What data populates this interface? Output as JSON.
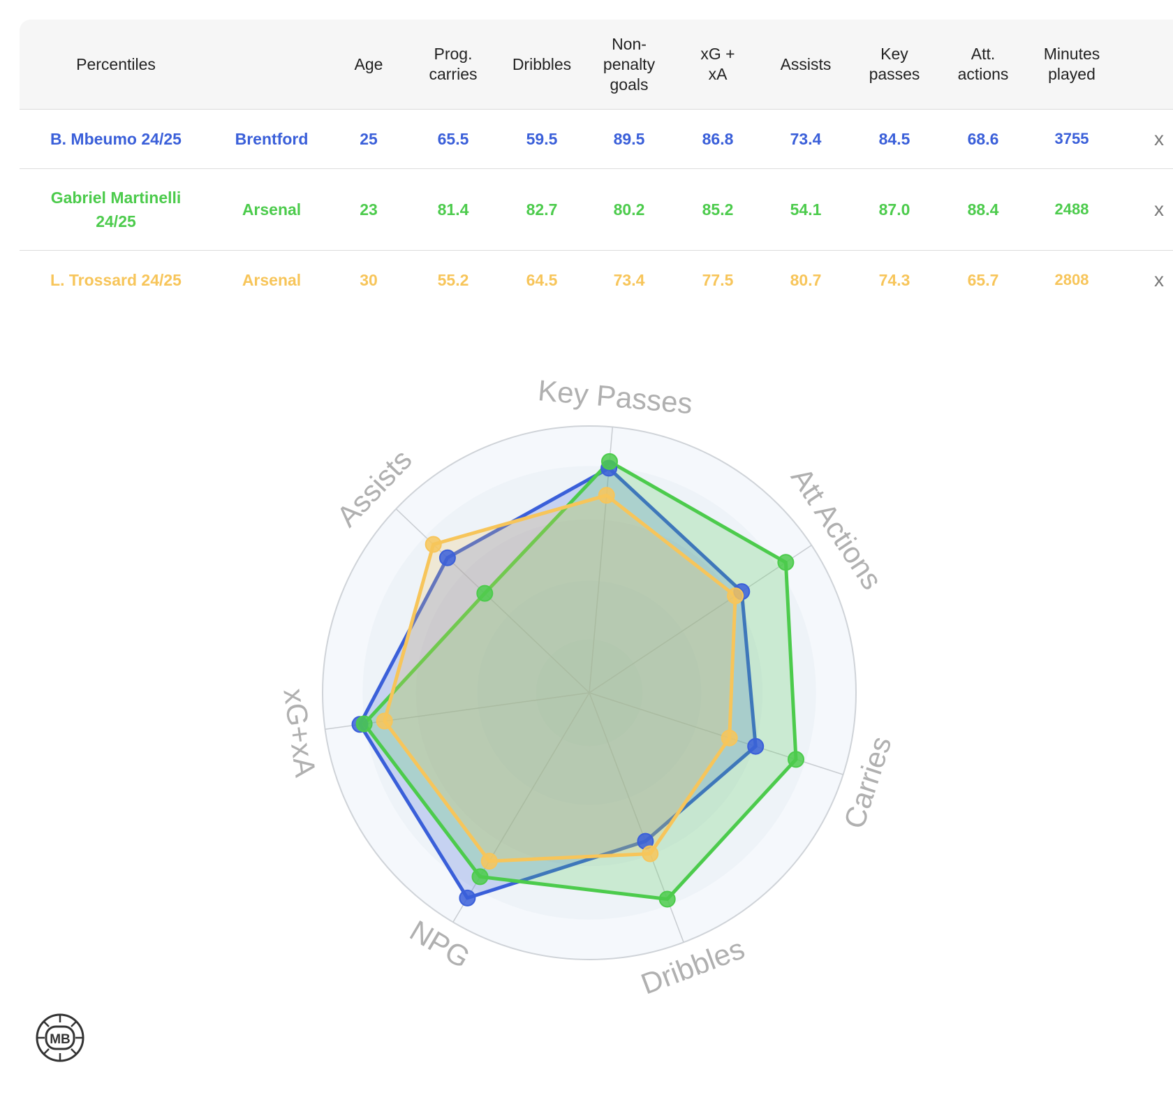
{
  "table": {
    "headers": {
      "percentiles": "Percentiles",
      "team": "",
      "age": "Age",
      "prog_carries": [
        "Prog.",
        "carries"
      ],
      "dribbles": "Dribbles",
      "npg": [
        "Non-",
        "penalty",
        "goals"
      ],
      "xgxa": [
        "xG +",
        "xA"
      ],
      "assists": "Assists",
      "key_passes": [
        "Key",
        "passes"
      ],
      "att_actions": [
        "Att.",
        "actions"
      ],
      "minutes": [
        "Minutes",
        "played"
      ]
    },
    "rows": [
      {
        "name_lines": [
          "B. Mbeumo 24/25"
        ],
        "team": "Brentford",
        "age": "25",
        "prog_carries": "65.5",
        "dribbles": "59.5",
        "npg": "89.5",
        "xgxa": "86.8",
        "assists": "73.4",
        "key_passes": "84.5",
        "att_actions": "68.6",
        "minutes": "3755",
        "remove": "x",
        "color": "#3a5fd9"
      },
      {
        "name_lines": [
          "Gabriel Martinelli",
          "24/25"
        ],
        "team": "Arsenal",
        "age": "23",
        "prog_carries": "81.4",
        "dribbles": "82.7",
        "npg": "80.2",
        "xgxa": "85.2",
        "assists": "54.1",
        "key_passes": "87.0",
        "att_actions": "88.4",
        "minutes": "2488",
        "remove": "x",
        "color": "#4ccb4c"
      },
      {
        "name_lines": [
          "L. Trossard 24/25"
        ],
        "team": "Arsenal",
        "age": "30",
        "prog_carries": "55.2",
        "dribbles": "64.5",
        "npg": "73.4",
        "xgxa": "77.5",
        "assists": "80.7",
        "key_passes": "74.3",
        "att_actions": "65.7",
        "minutes": "2808",
        "remove": "x",
        "color": "#f7c55a"
      }
    ]
  },
  "chart_data": {
    "type": "radar",
    "axes": [
      "Key Passes",
      "Att Actions",
      "Carries",
      "Dribbles",
      "NPG",
      "xG+xA",
      "Assists"
    ],
    "range": [
      0,
      100
    ],
    "grid": true,
    "series": [
      {
        "name": "B. Mbeumo 24/25",
        "color": "#3a5fd9",
        "values": [
          84.5,
          68.6,
          65.5,
          59.5,
          89.5,
          86.8,
          73.4
        ]
      },
      {
        "name": "Gabriel Martinelli 24/25",
        "color": "#4ccb4c",
        "values": [
          87.0,
          88.4,
          81.4,
          82.7,
          80.2,
          85.2,
          54.1
        ]
      },
      {
        "name": "L. Trossard 24/25",
        "color": "#f7c55a",
        "values": [
          74.3,
          65.7,
          55.2,
          64.5,
          73.4,
          77.5,
          80.7
        ]
      }
    ]
  },
  "logo": {
    "text": "MB"
  }
}
